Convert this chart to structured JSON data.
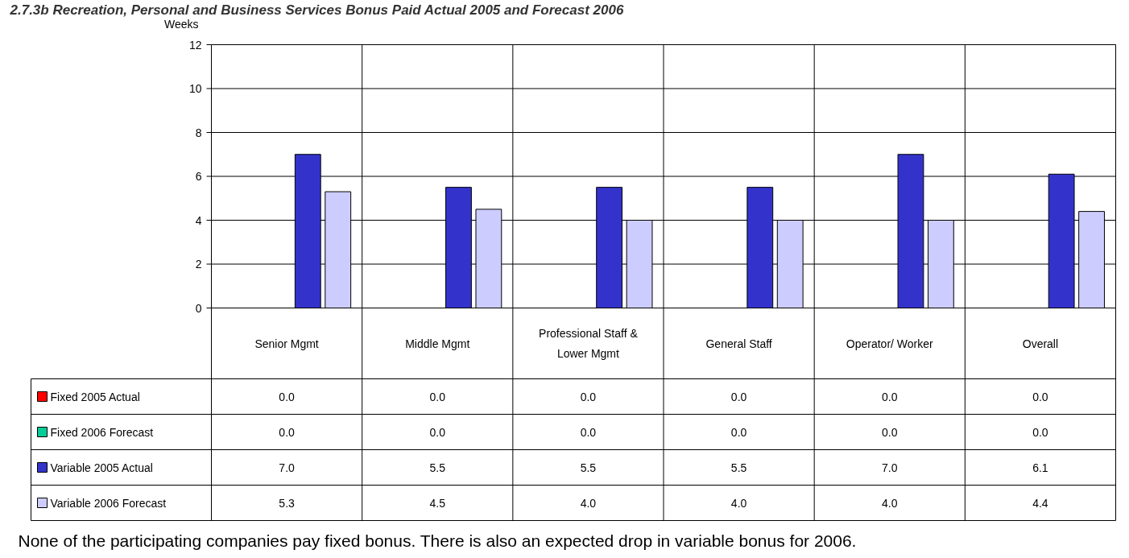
{
  "chart_data": {
    "type": "bar",
    "title": "2.7.3b     Recreation, Personal and Business Services Bonus Paid Actual 2005 and Forecast 2006",
    "ylabel": "Weeks",
    "categories": [
      "Senior Mgmt",
      "Middle Mgmt",
      "Professional Staff &\nLower Mgmt",
      "General Staff",
      "Operator/ Worker",
      "Overall"
    ],
    "series": [
      {
        "name": "Fixed 2005 Actual",
        "color": "#ff0000",
        "values": [
          0,
          0,
          0,
          0,
          0,
          0
        ],
        "value_labels": [
          "0.0",
          "0.0",
          "0.0",
          "0.0",
          "0.0",
          "0.0"
        ]
      },
      {
        "name": "Fixed 2006 Forecast",
        "color": "#00cc99",
        "values": [
          0,
          0,
          0,
          0,
          0,
          0
        ],
        "value_labels": [
          "0.0",
          "0.0",
          "0.0",
          "0.0",
          "0.0",
          "0.0"
        ]
      },
      {
        "name": "Variable 2005 Actual",
        "color": "#3333cc",
        "values": [
          7.0,
          5.5,
          5.5,
          5.5,
          7.0,
          6.1
        ],
        "value_labels": [
          "7.0",
          "5.5",
          "5.5",
          "5.5",
          "7.0",
          "6.1"
        ]
      },
      {
        "name": "Variable 2006 Forecast",
        "color": "#ccccff",
        "values": [
          5.3,
          4.5,
          4.0,
          4.0,
          4.0,
          4.4
        ],
        "value_labels": [
          "5.3",
          "4.5",
          "4.0",
          "4.0",
          "4.0",
          "4.4"
        ]
      }
    ],
    "ylim": [
      0,
      12
    ],
    "yticks": [
      0,
      2,
      4,
      6,
      8,
      10,
      12
    ],
    "grid": "y",
    "legend": "bottom left",
    "annotations": [
      "None of the participating companies pay fixed bonus.  There is also an expected drop in variable bonus for 2006."
    ]
  }
}
